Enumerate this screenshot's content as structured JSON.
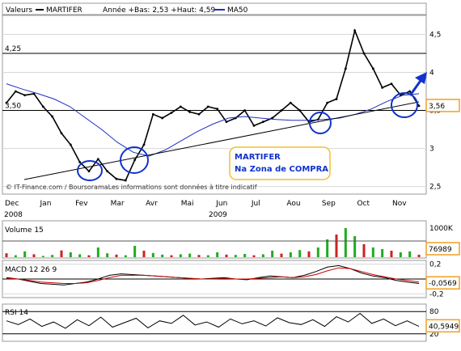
{
  "header": {
    "valeurs_label": "Valeurs",
    "symbol": "MARTIFER",
    "range_text": "Année +Bas: 2,53 +Haut: 4,59",
    "ma_label": "MA50"
  },
  "colors": {
    "price": "#000000",
    "ma": "#1f2fbf",
    "annotation": "#1133cc",
    "volume_up": "#22aa22",
    "volume_down": "#cc2222",
    "macd": "#000000",
    "signal": "#cc0000",
    "badge_bg": "#ffffff",
    "box_border": "#f0c030"
  },
  "annotation": {
    "line1": "MARTIFER",
    "line2": "Na Zona de COMPRA"
  },
  "footer": {
    "credit": "© IT-Finance.com / BoursoramaLes informations sont données à titre indicatif"
  },
  "chart_data": [
    {
      "type": "line",
      "name": "price",
      "title": "MARTIFER",
      "x_labels": [
        "Dec",
        "Jan",
        "Fev",
        "Mar",
        "Avr",
        "Mai",
        "Jun",
        "Jul",
        "Aou",
        "Sep",
        "Oct",
        "Nov"
      ],
      "year_labels": [
        "2008",
        "2009"
      ],
      "y_ticks": [
        "2,5",
        "3",
        "3,5",
        "4",
        "4,5"
      ],
      "left_ticks": [
        "4,25",
        "3,50"
      ],
      "ylim": [
        2.4,
        4.75
      ],
      "series": [
        {
          "name": "MARTIFER",
          "values": [
            3.6,
            3.75,
            3.7,
            3.72,
            3.55,
            3.42,
            3.2,
            3.05,
            2.82,
            2.7,
            2.86,
            2.7,
            2.6,
            2.58,
            2.85,
            3.05,
            3.45,
            3.4,
            3.47,
            3.55,
            3.48,
            3.45,
            3.55,
            3.52,
            3.35,
            3.4,
            3.5,
            3.3,
            3.35,
            3.4,
            3.5,
            3.6,
            3.5,
            3.35,
            3.38,
            3.6,
            3.65,
            4.05,
            4.55,
            4.25,
            4.05,
            3.8,
            3.85,
            3.7,
            3.75,
            3.56
          ]
        },
        {
          "name": "MA50",
          "values": [
            3.85,
            3.78,
            3.72,
            3.65,
            3.55,
            3.4,
            3.25,
            3.08,
            2.95,
            2.9,
            2.98,
            3.1,
            3.22,
            3.32,
            3.4,
            3.42,
            3.4,
            3.38,
            3.37,
            3.37,
            3.38,
            3.4,
            3.45,
            3.52,
            3.62,
            3.7,
            3.72
          ]
        }
      ],
      "last_value": "3,56"
    },
    {
      "type": "bar",
      "name": "volume",
      "title": "Volume 15",
      "y_ticks": [
        "1000K"
      ],
      "last_value": "76989",
      "values": [
        120,
        60,
        180,
        90,
        40,
        70,
        210,
        150,
        90,
        60,
        300,
        120,
        80,
        60,
        350,
        200,
        130,
        80,
        60,
        90,
        110,
        70,
        60,
        150,
        80,
        70,
        100,
        60,
        90,
        200,
        110,
        150,
        220,
        180,
        300,
        550,
        700,
        900,
        650,
        400,
        300,
        250,
        200,
        150,
        180,
        77
      ]
    },
    {
      "type": "line",
      "name": "macd",
      "title": "MACD 12 26 9",
      "y_ticks": [
        "0,2",
        "0",
        "-0,2"
      ],
      "last_value": "-0,0569",
      "series": [
        {
          "name": "MACD",
          "values": [
            0.02,
            0.0,
            -0.03,
            -0.06,
            -0.07,
            -0.08,
            -0.06,
            -0.04,
            0.0,
            0.05,
            0.07,
            0.06,
            0.05,
            0.04,
            0.03,
            0.02,
            0.01,
            0.0,
            0.01,
            0.02,
            0.0,
            -0.01,
            0.02,
            0.04,
            0.03,
            0.02,
            0.05,
            0.1,
            0.16,
            0.18,
            0.14,
            0.08,
            0.04,
            0.02,
            -0.02,
            -0.04,
            -0.06
          ]
        },
        {
          "name": "Signal",
          "values": [
            0.01,
            0.0,
            -0.02,
            -0.04,
            -0.05,
            -0.06,
            -0.06,
            -0.05,
            -0.02,
            0.02,
            0.05,
            0.05,
            0.05,
            0.04,
            0.03,
            0.02,
            0.01,
            0.0,
            0.0,
            0.01,
            0.0,
            0.0,
            0.01,
            0.02,
            0.03,
            0.02,
            0.03,
            0.06,
            0.11,
            0.15,
            0.14,
            0.1,
            0.06,
            0.03,
            0.0,
            -0.02,
            -0.04
          ]
        }
      ]
    },
    {
      "type": "line",
      "name": "rsi",
      "title": "RSI 14",
      "y_ticks": [
        "80",
        "20"
      ],
      "last_value": "40,5949",
      "series": [
        {
          "name": "RSI",
          "values": [
            55,
            45,
            60,
            40,
            52,
            35,
            58,
            42,
            65,
            38,
            50,
            62,
            36,
            55,
            48,
            70,
            44,
            52,
            38,
            60,
            47,
            55,
            41,
            63,
            50,
            45,
            58,
            40,
            66,
            52,
            75,
            48,
            60,
            42,
            55,
            40
          ]
        }
      ]
    }
  ]
}
